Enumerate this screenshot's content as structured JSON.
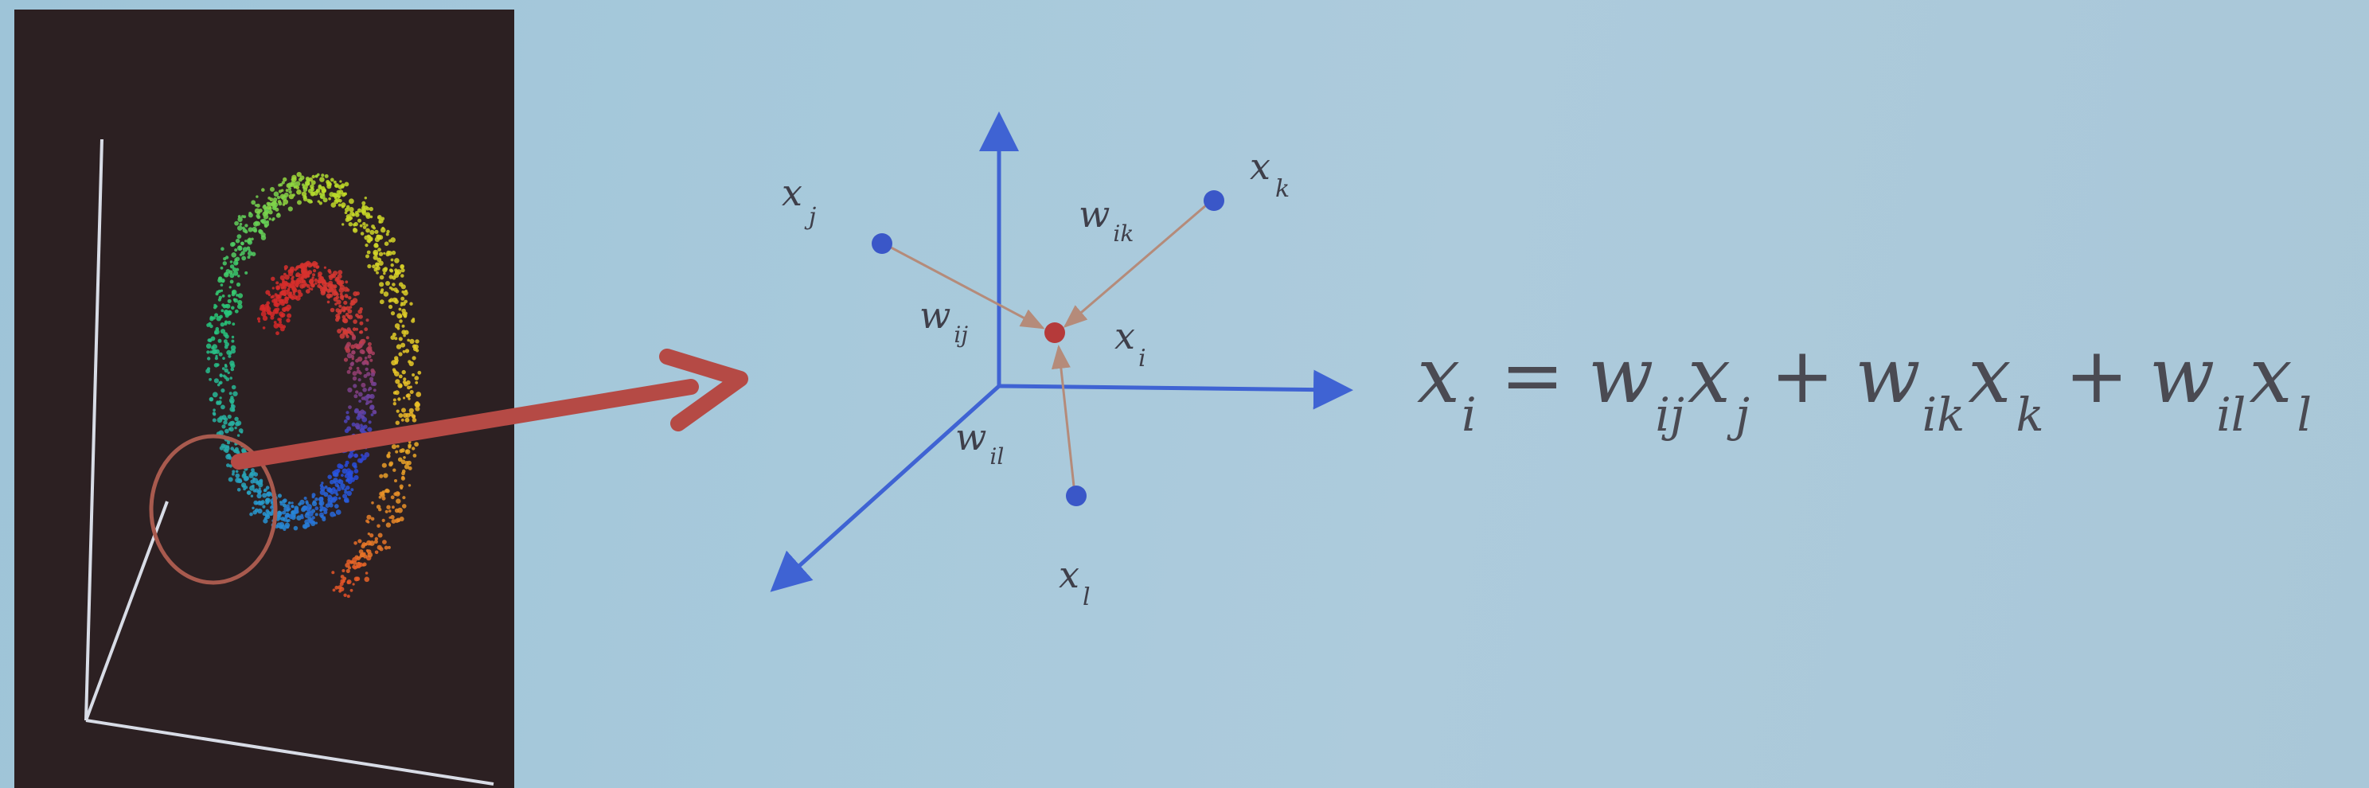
{
  "diagram": {
    "neighbor_labels": {
      "x_j": {
        "base": "x",
        "sub": "j"
      },
      "x_k": {
        "base": "x",
        "sub": "k"
      },
      "x_l": {
        "base": "x",
        "sub": "l"
      },
      "x_i": {
        "base": "x",
        "sub": "i"
      }
    },
    "weight_labels": {
      "w_ij": {
        "base": "w",
        "sub": "ij"
      },
      "w_ik": {
        "base": "w",
        "sub": "ik"
      },
      "w_il": {
        "base": "w",
        "sub": "il"
      }
    },
    "colors": {
      "axis": "#3f63d3",
      "neighbor_point": "#3a57c8",
      "center_point": "#b53a3a",
      "weight_arrow": "#b58b7a",
      "big_arrow": "#b54a45",
      "panel_bg": "#2c2022"
    }
  },
  "equation": {
    "lhs": {
      "base": "x",
      "sub": "i"
    },
    "equals": "=",
    "plus": "+",
    "terms": [
      {
        "w": "w",
        "w_sub": "ij",
        "x": "x",
        "x_sub": "j"
      },
      {
        "w": "w",
        "w_sub": "ik",
        "x": "x",
        "x_sub": "k"
      },
      {
        "w": "w",
        "w_sub": "il",
        "x": "x",
        "x_sub": "l"
      }
    ]
  }
}
